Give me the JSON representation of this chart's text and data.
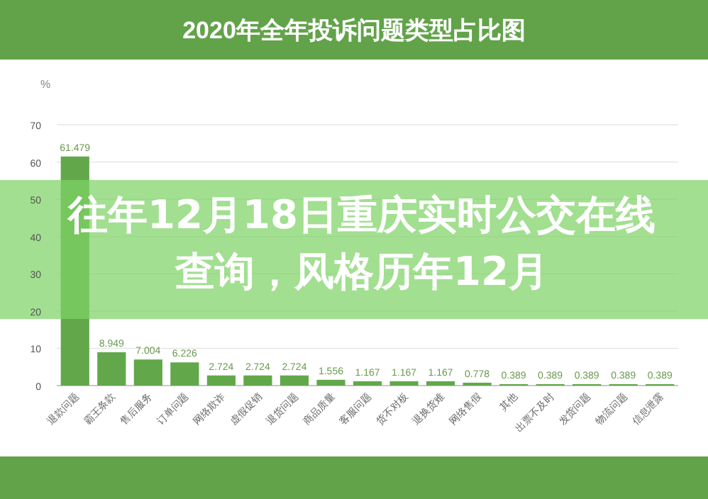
{
  "chart_data": {
    "type": "bar",
    "title": "2020年全年投诉问题类型占比图",
    "ylabel": "%",
    "categories": [
      "退款问题",
      "霸王条款",
      "售后服务",
      "订单问题",
      "网络欺诈",
      "虚假促销",
      "退货问题",
      "商品质量",
      "客服问题",
      "货不对板",
      "退换货难",
      "网络售假",
      "其他",
      "出票不及时",
      "发货问题",
      "物流问题",
      "信息泄露"
    ],
    "values": [
      61.479,
      8.949,
      7.004,
      6.226,
      2.724,
      2.724,
      2.724,
      1.556,
      1.167,
      1.167,
      1.167,
      0.778,
      0.389,
      0.389,
      0.389,
      0.389,
      0.389
    ],
    "color": "#62a84a",
    "ylim": [
      0,
      70
    ],
    "yticks": [
      0,
      10,
      20,
      30,
      40,
      50,
      60,
      70
    ],
    "grid": "y",
    "data_labels": true,
    "annotations": [
      "往年12月18日重庆实时公交在线查询，风格历年12月"
    ]
  }
}
